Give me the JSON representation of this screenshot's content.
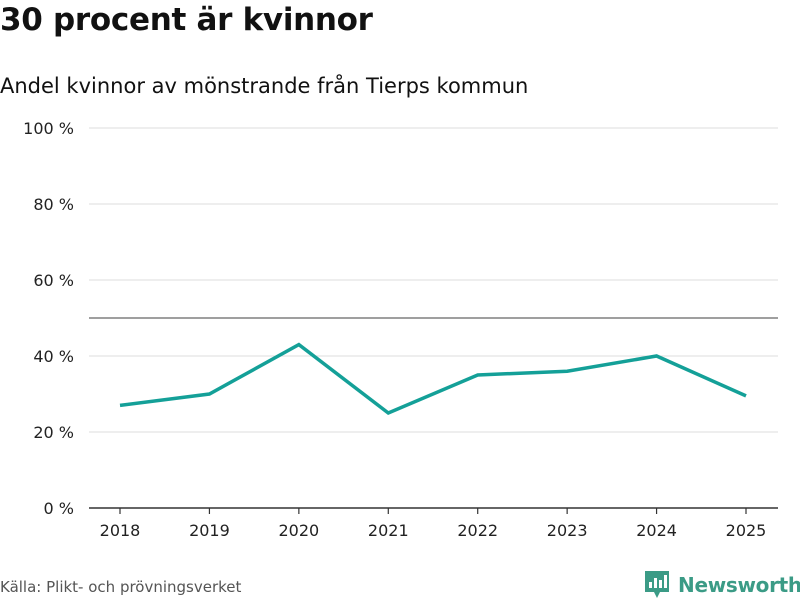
{
  "header": {
    "title": "30 procent är kvinnor",
    "subtitle": "Andel kvinnor av mönstrande från Tierps kommun"
  },
  "footer": {
    "source": "Källa: Plikt- och prövningsverket",
    "brand": "Newsworthy"
  },
  "colors": {
    "line": "#14a098",
    "brand": "#3b9b86",
    "grid": "#dddddd",
    "reference": "#666666",
    "axis": "#333333"
  },
  "chart_data": {
    "type": "line",
    "title": "30 procent är kvinnor",
    "subtitle": "Andel kvinnor av mönstrande från Tierps kommun",
    "xlabel": "",
    "ylabel": "",
    "categories": [
      "2018",
      "2019",
      "2020",
      "2021",
      "2022",
      "2023",
      "2024",
      "2025"
    ],
    "series": [
      {
        "name": "Andel kvinnor",
        "values": [
          27,
          30,
          43,
          25,
          35,
          36,
          40,
          29.5
        ]
      }
    ],
    "ylim": [
      0,
      100
    ],
    "yticks": [
      0,
      20,
      40,
      60,
      80,
      100
    ],
    "ytick_labels": [
      "0 %",
      "20 %",
      "40 %",
      "60 %",
      "80 %",
      "100 %"
    ],
    "reference_line": 50,
    "grid": true,
    "legend": "none"
  }
}
